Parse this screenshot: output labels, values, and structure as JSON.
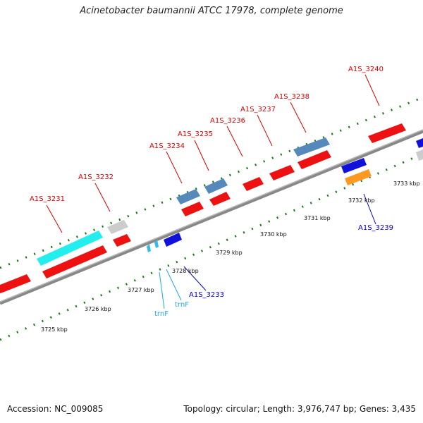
{
  "title": "Acinetobacter baumannii ATCC 17978, complete genome",
  "footer": {
    "accession": "Accession: NC_009085",
    "summary": "Topology: circular; Length: 3,976,747 bp; Genes: 3,435"
  },
  "colors": {
    "cds": "#ee1111",
    "rrna": "#5588bb",
    "other": "#cccccc",
    "rna": "#22eeee",
    "blue_cds": "#1111dd",
    "orange": "#ff9922",
    "trna": "#33bbee",
    "label_red": "#dd0000",
    "label_blue": "#0000cc",
    "label_cyan": "#22aadd",
    "ticks": "#227722"
  },
  "scale_labels": [
    "3725 kbp",
    "3726 kbp",
    "3727 kbp",
    "3728 kbp",
    "3729 kbp",
    "3730 kbp",
    "3731 kbp",
    "3732 kbp",
    "3733 kbp"
  ],
  "gene_labels": [
    {
      "text": "A1S_3231",
      "color": "label_red"
    },
    {
      "text": "A1S_3232",
      "color": "label_red"
    },
    {
      "text": "A1S_3234",
      "color": "label_red"
    },
    {
      "text": "A1S_3235",
      "color": "label_red"
    },
    {
      "text": "A1S_3236",
      "color": "label_red"
    },
    {
      "text": "A1S_3237",
      "color": "label_red"
    },
    {
      "text": "A1S_3238",
      "color": "label_red"
    },
    {
      "text": "A1S_3240",
      "color": "label_red"
    },
    {
      "text": "A1S_3239",
      "color": "label_blue"
    },
    {
      "text": "A1S_3233",
      "color": "label_blue"
    },
    {
      "text": "trnF",
      "color": "label_cyan"
    },
    {
      "text": "trnF",
      "color": "label_cyan"
    }
  ]
}
